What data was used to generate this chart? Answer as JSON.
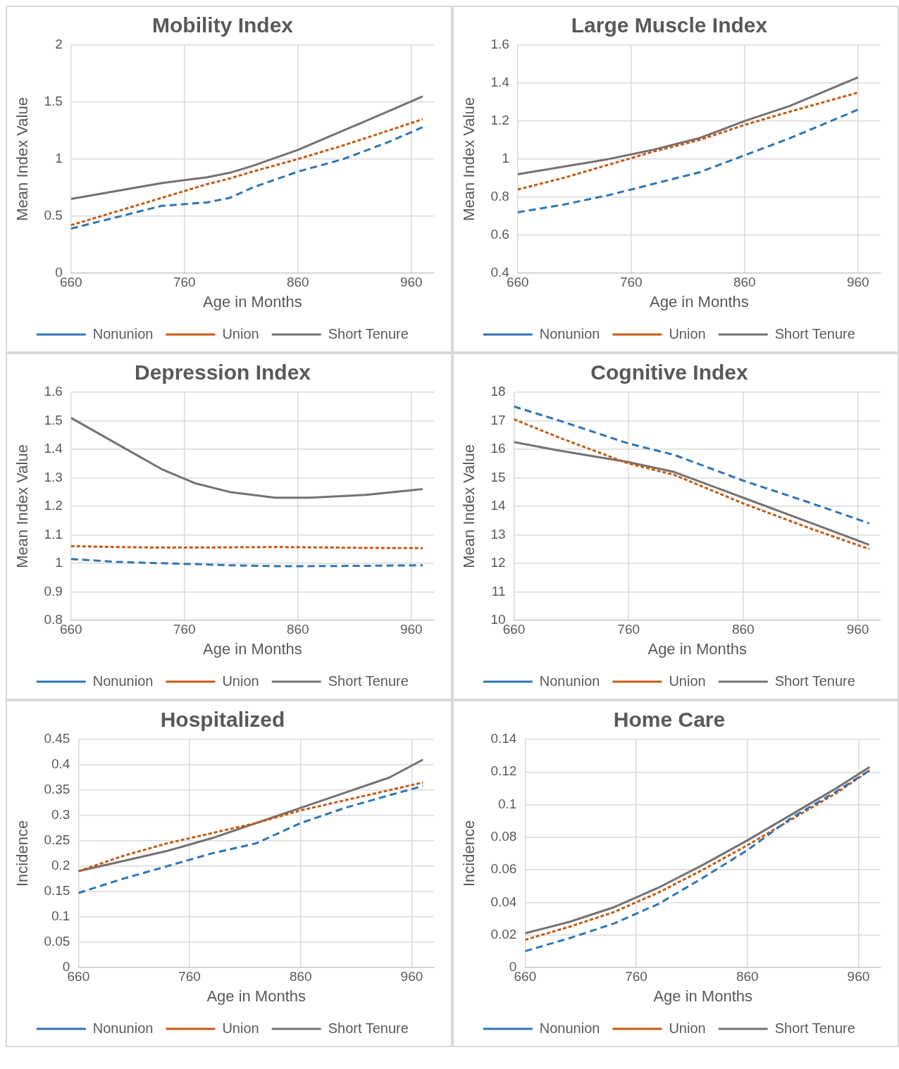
{
  "chart_data": [
    {
      "type": "line",
      "title": "Mobility Index",
      "xlabel": "Age in Months",
      "ylabel": "Mean Index Value",
      "x": [
        660,
        700,
        740,
        780,
        800,
        820,
        860,
        900,
        940,
        970
      ],
      "xlim": [
        660,
        980
      ],
      "xticks": [
        660,
        760,
        860,
        960
      ],
      "ylim": [
        0,
        2
      ],
      "yticks": [
        0,
        0.5,
        1,
        1.5,
        2
      ],
      "grid": true,
      "legend": "bottom",
      "marker": "none",
      "series": [
        {
          "name": "Nonunion",
          "color": "#2e75b6",
          "line_style": "dashed",
          "values": [
            0.39,
            0.49,
            0.59,
            0.62,
            0.66,
            0.75,
            0.89,
            1.0,
            1.15,
            1.28
          ]
        },
        {
          "name": "Union",
          "color": "#c55a11",
          "line_style": "dotted",
          "values": [
            0.42,
            0.54,
            0.66,
            0.78,
            0.83,
            0.89,
            1.0,
            1.12,
            1.25,
            1.35
          ]
        },
        {
          "name": "Short Tenure",
          "color": "#767171",
          "line_style": "solid",
          "values": [
            0.65,
            0.72,
            0.79,
            0.84,
            0.88,
            0.94,
            1.08,
            1.25,
            1.42,
            1.55
          ]
        }
      ]
    },
    {
      "type": "line",
      "title": "Large Muscle Index",
      "xlabel": "Age in Months",
      "ylabel": "Mean Index Value",
      "x": [
        660,
        700,
        740,
        780,
        820,
        860,
        900,
        960
      ],
      "xlim": [
        660,
        980
      ],
      "xticks": [
        660,
        760,
        860,
        960
      ],
      "ylim": [
        0.4,
        1.6
      ],
      "yticks": [
        0.4,
        0.6,
        0.8,
        1,
        1.2,
        1.4,
        1.6
      ],
      "grid": true,
      "legend": "bottom",
      "marker": "none",
      "series": [
        {
          "name": "Nonunion",
          "color": "#2e75b6",
          "line_style": "dashed",
          "values": [
            0.72,
            0.76,
            0.81,
            0.87,
            0.93,
            1.02,
            1.11,
            1.26
          ]
        },
        {
          "name": "Union",
          "color": "#c55a11",
          "line_style": "dotted",
          "values": [
            0.84,
            0.9,
            0.97,
            1.04,
            1.1,
            1.18,
            1.25,
            1.35
          ]
        },
        {
          "name": "Short Tenure",
          "color": "#767171",
          "line_style": "solid",
          "values": [
            0.92,
            0.96,
            1.0,
            1.05,
            1.11,
            1.2,
            1.28,
            1.43
          ]
        }
      ]
    },
    {
      "type": "line",
      "title": "Depression Index",
      "xlabel": "Age in Months",
      "ylabel": "Mean Index Value",
      "x": [
        660,
        700,
        740,
        770,
        800,
        840,
        870,
        920,
        970
      ],
      "xlim": [
        660,
        980
      ],
      "xticks": [
        660,
        760,
        860,
        960
      ],
      "ylim": [
        0.8,
        1.6
      ],
      "yticks": [
        0.8,
        0.9,
        1,
        1.1,
        1.2,
        1.3,
        1.4,
        1.5,
        1.6
      ],
      "grid": true,
      "legend": "bottom",
      "marker": "none",
      "series": [
        {
          "name": "Nonunion",
          "color": "#2e75b6",
          "line_style": "dashed",
          "values": [
            1.015,
            1.005,
            1.0,
            0.997,
            0.993,
            0.99,
            0.99,
            0.991,
            0.993
          ]
        },
        {
          "name": "Union",
          "color": "#c55a11",
          "line_style": "dotted",
          "values": [
            1.06,
            1.057,
            1.055,
            1.055,
            1.056,
            1.057,
            1.056,
            1.054,
            1.053
          ]
        },
        {
          "name": "Short Tenure",
          "color": "#767171",
          "line_style": "solid",
          "values": [
            1.51,
            1.42,
            1.33,
            1.28,
            1.25,
            1.23,
            1.23,
            1.24,
            1.26
          ]
        }
      ]
    },
    {
      "type": "line",
      "title": "Cognitive Index",
      "xlabel": "Age in Months",
      "ylabel": "Mean Index Value",
      "x": [
        660,
        700,
        760,
        800,
        860,
        920,
        970
      ],
      "xlim": [
        660,
        980
      ],
      "xticks": [
        660,
        760,
        860,
        960
      ],
      "ylim": [
        10,
        18
      ],
      "yticks": [
        10,
        11,
        12,
        13,
        14,
        15,
        16,
        17,
        18
      ],
      "grid": true,
      "legend": "bottom",
      "marker": "none",
      "series": [
        {
          "name": "Nonunion",
          "color": "#2e75b6",
          "line_style": "dashed",
          "values": [
            17.5,
            17.0,
            16.2,
            15.8,
            14.9,
            14.1,
            13.4
          ]
        },
        {
          "name": "Union",
          "color": "#c55a11",
          "line_style": "dotted",
          "values": [
            17.05,
            16.4,
            15.5,
            15.1,
            14.1,
            13.2,
            12.5
          ]
        },
        {
          "name": "Short Tenure",
          "color": "#767171",
          "line_style": "solid",
          "values": [
            16.25,
            15.95,
            15.55,
            15.2,
            14.3,
            13.4,
            12.65
          ]
        }
      ]
    },
    {
      "type": "line",
      "title": "Hospitalized",
      "xlabel": "Age in Months",
      "ylabel": "Incidence",
      "x": [
        660,
        700,
        740,
        780,
        820,
        860,
        900,
        940,
        970
      ],
      "xlim": [
        660,
        980
      ],
      "xticks": [
        660,
        760,
        860,
        960
      ],
      "ylim": [
        0,
        0.45
      ],
      "yticks": [
        0,
        0.05,
        0.1,
        0.15,
        0.2,
        0.25,
        0.3,
        0.35,
        0.4,
        0.45
      ],
      "grid": true,
      "legend": "bottom",
      "marker": "none",
      "series": [
        {
          "name": "Nonunion",
          "color": "#2e75b6",
          "line_style": "dashed",
          "values": [
            0.147,
            0.175,
            0.2,
            0.225,
            0.245,
            0.285,
            0.315,
            0.34,
            0.358
          ]
        },
        {
          "name": "Union",
          "color": "#c55a11",
          "line_style": "dotted",
          "values": [
            0.19,
            0.22,
            0.245,
            0.265,
            0.285,
            0.31,
            0.33,
            0.35,
            0.365
          ]
        },
        {
          "name": "Short Tenure",
          "color": "#767171",
          "line_style": "solid",
          "values": [
            0.19,
            0.21,
            0.23,
            0.255,
            0.285,
            0.315,
            0.345,
            0.375,
            0.41
          ]
        }
      ]
    },
    {
      "type": "line",
      "title": "Home Care",
      "xlabel": "Age in Months",
      "ylabel": "Incidence",
      "x": [
        660,
        700,
        740,
        780,
        820,
        860,
        900,
        940,
        970
      ],
      "xlim": [
        660,
        980
      ],
      "xticks": [
        660,
        760,
        860,
        960
      ],
      "ylim": [
        0,
        0.14
      ],
      "yticks": [
        0,
        0.02,
        0.04,
        0.06,
        0.08,
        0.1,
        0.12,
        0.14
      ],
      "grid": true,
      "legend": "bottom",
      "marker": "none",
      "series": [
        {
          "name": "Nonunion",
          "color": "#2e75b6",
          "line_style": "dashed",
          "values": [
            0.01,
            0.018,
            0.027,
            0.039,
            0.055,
            0.072,
            0.092,
            0.108,
            0.121
          ]
        },
        {
          "name": "Union",
          "color": "#c55a11",
          "line_style": "dotted",
          "values": [
            0.017,
            0.025,
            0.034,
            0.046,
            0.06,
            0.075,
            0.091,
            0.107,
            0.121
          ]
        },
        {
          "name": "Short Tenure",
          "color": "#767171",
          "line_style": "solid",
          "values": [
            0.021,
            0.028,
            0.037,
            0.049,
            0.063,
            0.078,
            0.094,
            0.11,
            0.123
          ]
        }
      ]
    }
  ]
}
